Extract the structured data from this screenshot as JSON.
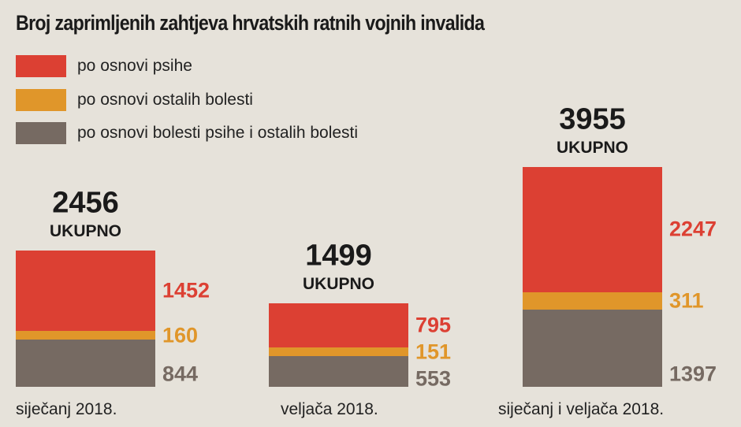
{
  "chart_data": {
    "type": "bar",
    "stacked": true,
    "title": "Broj zaprimljenih zahtjeva hrvatskih ratnih vojnih invalida",
    "categories": [
      "siječanj 2018.",
      "veljača 2018.",
      "siječanj i veljača 2018."
    ],
    "series": [
      {
        "name": "po osnovi bolesti psihe i ostalih bolesti",
        "color": "#766a62",
        "values": [
          844,
          553,
          1397
        ]
      },
      {
        "name": "po osnovi ostalih bolesti",
        "color": "#e0962a",
        "values": [
          160,
          151,
          311
        ]
      },
      {
        "name": "po osnovi psihe",
        "color": "#dc4033",
        "values": [
          1452,
          795,
          2247
        ]
      }
    ],
    "totals": [
      "2456",
      "1499",
      "3955"
    ],
    "total_label": "UKUPNO",
    "legend_order": [
      2,
      1,
      0
    ],
    "legend_placement": "top-left",
    "grid": false
  }
}
